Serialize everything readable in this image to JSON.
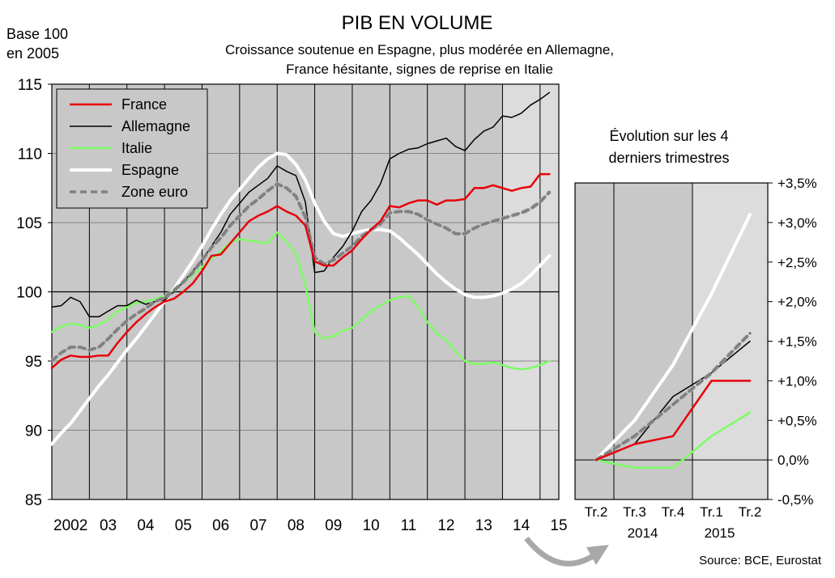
{
  "title": "PIB EN VOLUME",
  "subtitle_line1": "Croissance soutenue en Espagne, plus modérée en Allemagne,",
  "subtitle_line2": "France hésitante, signes de reprise en Italie",
  "base_label_line1": "Base 100",
  "base_label_line2": "en 2005",
  "inset_title_line1": "Évolution sur les 4",
  "inset_title_line2": "derniers trimestres",
  "source": "Source: BCE, Eurostat",
  "colors": {
    "France": "#e8000b",
    "Allemagne": "#000000",
    "Italie": "#7cfc63",
    "Espagne": "#ffffff",
    "Zone euro": "#808080",
    "plot_bg": "#c8c8c8",
    "shade_bg": "#dcdcdc",
    "inset_border": "#000000",
    "arrow": "#a0a0a0"
  },
  "chart_data": [
    {
      "type": "line",
      "legend_position": "top-left",
      "grid": true,
      "ylim": [
        85,
        115
      ],
      "xlim": [
        2002.0,
        2015.5
      ],
      "yticks": [
        85,
        90,
        95,
        100,
        105,
        110,
        115
      ],
      "xtick_labels": [
        "2002",
        "03",
        "04",
        "05",
        "06",
        "07",
        "08",
        "09",
        "10",
        "11",
        "12",
        "13",
        "14",
        "15"
      ],
      "shaded_x_range": [
        2014.0,
        2015.5
      ],
      "series": [
        {
          "name": "France",
          "x": [
            2002.0,
            2002.25,
            2002.5,
            2002.75,
            2003.0,
            2003.25,
            2003.5,
            2003.75,
            2004.0,
            2004.25,
            2004.5,
            2004.75,
            2005.0,
            2005.25,
            2005.5,
            2005.75,
            2006.0,
            2006.25,
            2006.5,
            2006.75,
            2007.0,
            2007.25,
            2007.5,
            2007.75,
            2008.0,
            2008.25,
            2008.5,
            2008.75,
            2009.0,
            2009.25,
            2009.5,
            2009.75,
            2010.0,
            2010.25,
            2010.5,
            2010.75,
            2011.0,
            2011.25,
            2011.5,
            2011.75,
            2012.0,
            2012.25,
            2012.5,
            2012.75,
            2013.0,
            2013.25,
            2013.5,
            2013.75,
            2014.0,
            2014.25,
            2014.5,
            2014.75,
            2015.0,
            2015.25
          ],
          "values": [
            94.5,
            95.1,
            95.4,
            95.3,
            95.3,
            95.4,
            95.4,
            96.3,
            97.1,
            97.8,
            98.4,
            98.9,
            99.3,
            99.5,
            100.0,
            100.6,
            101.5,
            102.6,
            102.7,
            103.5,
            104.3,
            105.1,
            105.5,
            105.8,
            106.2,
            105.8,
            105.5,
            104.8,
            102.2,
            101.9,
            101.9,
            102.5,
            103.0,
            103.8,
            104.5,
            105.1,
            106.2,
            106.1,
            106.4,
            106.6,
            106.6,
            106.3,
            106.6,
            106.6,
            106.7,
            107.5,
            107.5,
            107.7,
            107.5,
            107.3,
            107.5,
            107.6,
            108.5,
            108.5
          ]
        },
        {
          "name": "Allemagne",
          "x": [
            2002.0,
            2002.25,
            2002.5,
            2002.75,
            2003.0,
            2003.25,
            2003.5,
            2003.75,
            2004.0,
            2004.25,
            2004.5,
            2004.75,
            2005.0,
            2005.25,
            2005.5,
            2005.75,
            2006.0,
            2006.25,
            2006.5,
            2006.75,
            2007.0,
            2007.25,
            2007.5,
            2007.75,
            2008.0,
            2008.25,
            2008.5,
            2008.75,
            2009.0,
            2009.25,
            2009.5,
            2009.75,
            2010.0,
            2010.25,
            2010.5,
            2010.75,
            2011.0,
            2011.25,
            2011.5,
            2011.75,
            2012.0,
            2012.25,
            2012.5,
            2012.75,
            2013.0,
            2013.25,
            2013.5,
            2013.75,
            2014.0,
            2014.25,
            2014.5,
            2014.75,
            2015.0,
            2015.25
          ],
          "values": [
            98.9,
            99.0,
            99.6,
            99.3,
            98.2,
            98.2,
            98.6,
            99.0,
            99.0,
            99.4,
            99.1,
            99.3,
            99.4,
            100.0,
            100.7,
            101.5,
            102.3,
            103.3,
            104.3,
            105.6,
            106.4,
            107.2,
            107.7,
            108.2,
            109.1,
            108.7,
            108.4,
            106.5,
            101.4,
            101.5,
            102.5,
            103.3,
            104.4,
            105.8,
            106.6,
            107.8,
            109.6,
            110.0,
            110.3,
            110.4,
            110.7,
            110.9,
            111.1,
            110.5,
            110.2,
            111.0,
            111.6,
            111.9,
            112.7,
            112.6,
            112.9,
            113.5,
            113.9,
            114.4
          ]
        },
        {
          "name": "Italie",
          "x": [
            2002.0,
            2002.25,
            2002.5,
            2002.75,
            2003.0,
            2003.25,
            2003.5,
            2003.75,
            2004.0,
            2004.25,
            2004.5,
            2004.75,
            2005.0,
            2005.25,
            2005.5,
            2005.75,
            2006.0,
            2006.25,
            2006.5,
            2006.75,
            2007.0,
            2007.25,
            2007.5,
            2007.75,
            2008.0,
            2008.25,
            2008.5,
            2008.75,
            2009.0,
            2009.25,
            2009.5,
            2009.75,
            2010.0,
            2010.25,
            2010.5,
            2010.75,
            2011.0,
            2011.25,
            2011.5,
            2011.75,
            2012.0,
            2012.25,
            2012.5,
            2012.75,
            2013.0,
            2013.25,
            2013.5,
            2013.75,
            2014.0,
            2014.25,
            2014.5,
            2014.75,
            2015.0,
            2015.25
          ],
          "values": [
            97.1,
            97.5,
            97.7,
            97.6,
            97.4,
            97.6,
            98.0,
            98.6,
            98.9,
            99.2,
            99.3,
            99.5,
            99.7,
            100.1,
            100.7,
            101.2,
            101.8,
            102.4,
            102.9,
            103.6,
            103.8,
            103.7,
            103.6,
            103.5,
            104.3,
            103.6,
            102.8,
            100.5,
            97.1,
            96.6,
            96.8,
            97.2,
            97.4,
            98.0,
            98.6,
            99.0,
            99.4,
            99.6,
            99.7,
            98.9,
            97.8,
            97.0,
            96.5,
            95.7,
            95.0,
            94.8,
            94.8,
            94.9,
            94.7,
            94.5,
            94.4,
            94.5,
            94.7,
            95.0
          ]
        },
        {
          "name": "Espagne",
          "x": [
            2002.0,
            2002.25,
            2002.5,
            2002.75,
            2003.0,
            2003.25,
            2003.5,
            2003.75,
            2004.0,
            2004.25,
            2004.5,
            2004.75,
            2005.0,
            2005.25,
            2005.5,
            2005.75,
            2006.0,
            2006.25,
            2006.5,
            2006.75,
            2007.0,
            2007.25,
            2007.5,
            2007.75,
            2008.0,
            2008.25,
            2008.5,
            2008.75,
            2009.0,
            2009.25,
            2009.5,
            2009.75,
            2010.0,
            2010.25,
            2010.5,
            2010.75,
            2011.0,
            2011.25,
            2011.5,
            2011.75,
            2012.0,
            2012.25,
            2012.5,
            2012.75,
            2013.0,
            2013.25,
            2013.5,
            2013.75,
            2014.0,
            2014.25,
            2014.5,
            2014.75,
            2015.0,
            2015.25
          ],
          "values": [
            89.0,
            89.8,
            90.5,
            91.4,
            92.3,
            93.2,
            94.0,
            94.9,
            95.8,
            96.6,
            97.5,
            98.4,
            99.3,
            100.2,
            101.2,
            102.2,
            103.3,
            104.5,
            105.6,
            106.6,
            107.4,
            108.2,
            109.0,
            109.6,
            110.0,
            109.9,
            109.2,
            108.1,
            106.4,
            105.1,
            104.2,
            104.0,
            104.2,
            104.4,
            104.5,
            104.5,
            104.4,
            103.9,
            103.3,
            102.7,
            102.0,
            101.3,
            100.7,
            100.2,
            99.8,
            99.6,
            99.6,
            99.7,
            99.9,
            100.2,
            100.6,
            101.2,
            101.9,
            102.6
          ]
        },
        {
          "name": "Zone euro",
          "x": [
            2002.0,
            2002.25,
            2002.5,
            2002.75,
            2003.0,
            2003.25,
            2003.5,
            2003.75,
            2004.0,
            2004.25,
            2004.5,
            2004.75,
            2005.0,
            2005.25,
            2005.5,
            2005.75,
            2006.0,
            2006.25,
            2006.5,
            2006.75,
            2007.0,
            2007.25,
            2007.5,
            2007.75,
            2008.0,
            2008.25,
            2008.5,
            2008.75,
            2009.0,
            2009.25,
            2009.5,
            2009.75,
            2010.0,
            2010.25,
            2010.5,
            2010.75,
            2011.0,
            2011.25,
            2011.5,
            2011.75,
            2012.0,
            2012.25,
            2012.5,
            2012.75,
            2013.0,
            2013.25,
            2013.5,
            2013.75,
            2014.0,
            2014.25,
            2014.5,
            2014.75,
            2015.0,
            2015.25
          ],
          "values": [
            95.0,
            95.6,
            96.0,
            96.0,
            95.8,
            96.0,
            96.6,
            97.3,
            97.9,
            98.4,
            98.8,
            99.3,
            99.6,
            100.1,
            100.7,
            101.4,
            102.3,
            103.2,
            103.9,
            104.8,
            105.5,
            106.2,
            106.7,
            107.3,
            107.8,
            107.5,
            106.9,
            105.4,
            102.5,
            102.0,
            102.3,
            102.8,
            103.3,
            104.0,
            104.5,
            104.9,
            105.7,
            105.8,
            105.8,
            105.6,
            105.2,
            104.9,
            104.6,
            104.2,
            104.2,
            104.6,
            104.9,
            105.1,
            105.3,
            105.5,
            105.7,
            106.0,
            106.5,
            107.2
          ]
        }
      ]
    },
    {
      "type": "line",
      "title_line1": "Évolution sur les 4",
      "title_line2": "derniers trimestres",
      "grid": true,
      "ylim": [
        -0.5,
        3.5
      ],
      "ytick_labels": [
        "+3,5%",
        "+3,0%",
        "+2,5%",
        "+2,0%",
        "+1,5%",
        "+1,0%",
        "+0,5%",
        "0,0%",
        "-0,5%"
      ],
      "ytick_values": [
        3.5,
        3.0,
        2.5,
        2.0,
        1.5,
        1.0,
        0.5,
        0.0,
        -0.5
      ],
      "categories": [
        "Tr.2",
        "Tr.3",
        "Tr.4",
        "Tr.1",
        "Tr.2"
      ],
      "year_labels": [
        {
          "label": "2014",
          "under": 1
        },
        {
          "label": "2015",
          "under": 3
        }
      ],
      "series": [
        {
          "name": "France",
          "values": [
            0.0,
            0.2,
            0.3,
            1.0,
            1.0
          ]
        },
        {
          "name": "Allemagne",
          "values": [
            0.0,
            0.2,
            0.8,
            1.1,
            1.5
          ]
        },
        {
          "name": "Italie",
          "values": [
            0.0,
            -0.1,
            -0.1,
            0.3,
            0.6
          ]
        },
        {
          "name": "Espagne",
          "values": [
            0.0,
            0.5,
            1.2,
            2.1,
            3.1
          ]
        },
        {
          "name": "Zone euro",
          "values": [
            0.0,
            0.3,
            0.7,
            1.1,
            1.6
          ]
        }
      ]
    }
  ]
}
